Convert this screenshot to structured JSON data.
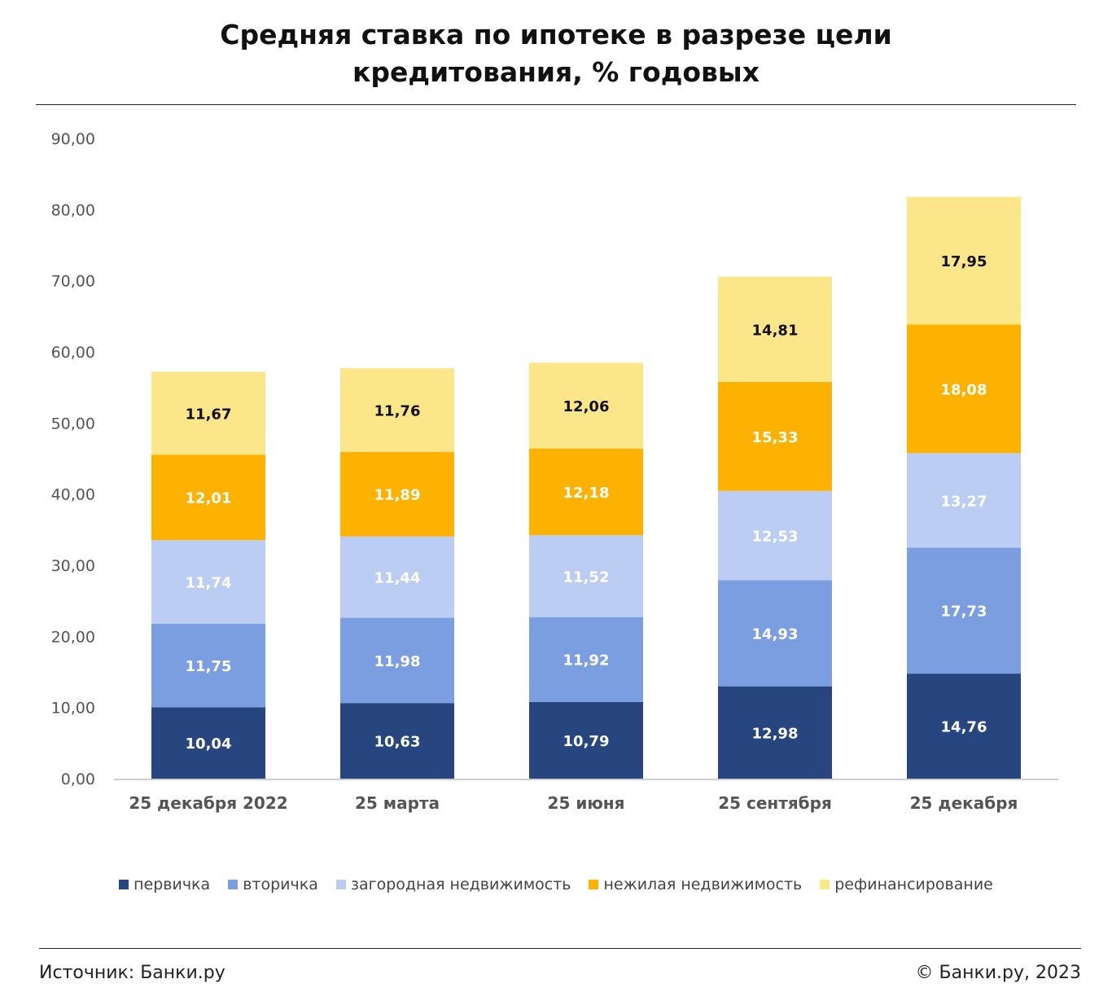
{
  "header": {
    "title_line1": "Средняя ставка по ипотеке в разрезе цели",
    "title_line2": "кредитования, % годовых"
  },
  "footer": {
    "source": "Источник: Банки.ру",
    "copyright": "© Банки.ру, 2023"
  },
  "chart_data": {
    "type": "bar",
    "stacked": true,
    "title": "Средняя ставка по ипотеке в разрезе цели кредитования, % годовых",
    "xlabel": "",
    "ylabel": "",
    "ylim": [
      0,
      90
    ],
    "ytick_step": 10,
    "grid": false,
    "legend_position": "bottom",
    "categories": [
      "25 декабря 2022",
      "25 марта",
      "25 июня",
      "25 сентября",
      "25 декабря"
    ],
    "series": [
      {
        "name": "первичка",
        "color": "#27467f",
        "label_color": "#ffffff",
        "values": [
          10.04,
          10.63,
          10.79,
          12.98,
          14.76
        ],
        "labels": [
          "10,04",
          "10,63",
          "10,79",
          "12,98",
          "14,76"
        ]
      },
      {
        "name": "вторичка",
        "color": "#7b9ee0",
        "label_color": "#ffffff",
        "values": [
          11.75,
          11.98,
          11.92,
          14.93,
          17.73
        ],
        "labels": [
          "11,75",
          "11,98",
          "11,92",
          "14,93",
          "17,73"
        ]
      },
      {
        "name": "загородная недвижимость",
        "color": "#bccdf4",
        "label_color": "#ffffff",
        "values": [
          11.74,
          11.44,
          11.52,
          12.53,
          13.27
        ],
        "labels": [
          "11,74",
          "11,44",
          "11,52",
          "12,53",
          "13,27"
        ]
      },
      {
        "name": "нежилая недвижимость",
        "color": "#fdb100",
        "label_color": "#ffffff",
        "values": [
          12.01,
          11.89,
          12.18,
          15.33,
          18.08
        ],
        "labels": [
          "12,01",
          "11,89",
          "12,18",
          "15,33",
          "18,08"
        ]
      },
      {
        "name": "рефинансирование",
        "color": "#fce68a",
        "label_color": "#111111",
        "values": [
          11.67,
          11.76,
          12.06,
          14.81,
          17.95
        ],
        "labels": [
          "11,67",
          "11,76",
          "12,06",
          "14,81",
          "17,95"
        ]
      }
    ],
    "yticks": [
      "0,00",
      "10,00",
      "20,00",
      "30,00",
      "40,00",
      "50,00",
      "60,00",
      "70,00",
      "80,00",
      "90,00"
    ]
  }
}
